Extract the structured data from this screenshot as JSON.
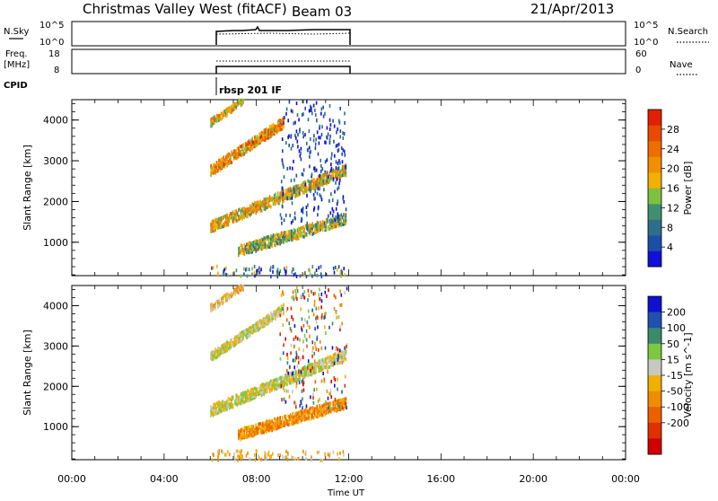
{
  "header": {
    "title": "Christmas Valley West (fitACF)",
    "beam": "Beam 03",
    "date": "21/Apr/2013"
  },
  "top_panels": {
    "nsky": {
      "left_label": "N.Sky",
      "left_ticks": [
        "10^5",
        "10^0"
      ],
      "right_ticks": [
        "10^5",
        "10^0"
      ],
      "right_label": "N.Search"
    },
    "freq": {
      "left_label_1": "Freq.",
      "left_label_2": "[MHz]",
      "left_ticks": [
        "18",
        "8"
      ],
      "right_ticks": [
        "60",
        "0"
      ],
      "right_label": "Nave"
    },
    "cpid": {
      "label": "CPID",
      "mode": "rbsp 201 IF"
    }
  },
  "chart_data": [
    {
      "type": "heatmap",
      "parameter": "Power",
      "ylabel": "Slant Range [km]",
      "xlabel": "Time UT",
      "x_ticks": [
        "00:00",
        "04:00",
        "08:00",
        "12:00",
        "16:00",
        "20:00",
        "00:00"
      ],
      "y_ticks": [
        1000,
        2000,
        3000,
        4000
      ],
      "ylim": [
        180,
        4500
      ],
      "xlim_hours": [
        0,
        24
      ],
      "data_window_hours": [
        6.0,
        12.0
      ],
      "colorbar": {
        "label": "Power [dB]",
        "ticks": [
          4,
          8,
          12,
          16,
          20,
          24,
          28
        ],
        "range": [
          0,
          32
        ],
        "colors": [
          "#1010d8",
          "#1c4ea8",
          "#2e6e8a",
          "#409070",
          "#7ec040",
          "#f2b000",
          "#f09000",
          "#ee6e00",
          "#e84a00",
          "#e02000"
        ]
      },
      "bands": [
        {
          "t_start": 6.0,
          "t_end": 11.9,
          "range_start": 1400,
          "range_end": 2800,
          "thickness": 260,
          "value": 18
        },
        {
          "t_start": 6.0,
          "t_end": 9.2,
          "range_start": 2750,
          "range_end": 3950,
          "thickness": 230,
          "value": 22
        },
        {
          "t_start": 6.0,
          "t_end": 7.4,
          "range_start": 3950,
          "range_end": 4500,
          "thickness": 180,
          "value": 18
        },
        {
          "t_start": 7.2,
          "t_end": 11.9,
          "range_start": 800,
          "range_end": 1600,
          "thickness": 260,
          "value": 14
        }
      ]
    },
    {
      "type": "heatmap",
      "parameter": "Velocity",
      "ylabel": "Slant Range [km]",
      "xlabel": "Time UT",
      "x_ticks": [
        "00:00",
        "04:00",
        "08:00",
        "12:00",
        "16:00",
        "20:00",
        "00:00"
      ],
      "y_ticks": [
        1000,
        2000,
        3000,
        4000
      ],
      "ylim": [
        180,
        4500
      ],
      "xlim_hours": [
        0,
        24
      ],
      "data_window_hours": [
        6.0,
        12.0
      ],
      "colorbar": {
        "label": "Velocity [m s^-1]",
        "ticks": [
          200,
          100,
          50,
          15,
          -15,
          -50,
          -100,
          -200
        ],
        "colors": [
          "#1010d0",
          "#2050b0",
          "#3c8a6a",
          "#7cc840",
          "#c8c8c0",
          "#f0b000",
          "#f08c00",
          "#ec6000",
          "#e03000",
          "#d00000"
        ]
      },
      "bands": [
        {
          "t_start": 6.0,
          "t_end": 11.9,
          "range_start": 1400,
          "range_end": 2800,
          "thickness": 250,
          "value": -10
        },
        {
          "t_start": 6.0,
          "t_end": 9.2,
          "range_start": 2750,
          "range_end": 3950,
          "thickness": 220,
          "value": 0
        },
        {
          "t_start": 6.0,
          "t_end": 7.4,
          "range_start": 3950,
          "range_end": 4500,
          "thickness": 170,
          "value": -20
        },
        {
          "t_start": 7.2,
          "t_end": 11.9,
          "range_start": 800,
          "range_end": 1600,
          "thickness": 240,
          "value": -60
        }
      ]
    }
  ]
}
